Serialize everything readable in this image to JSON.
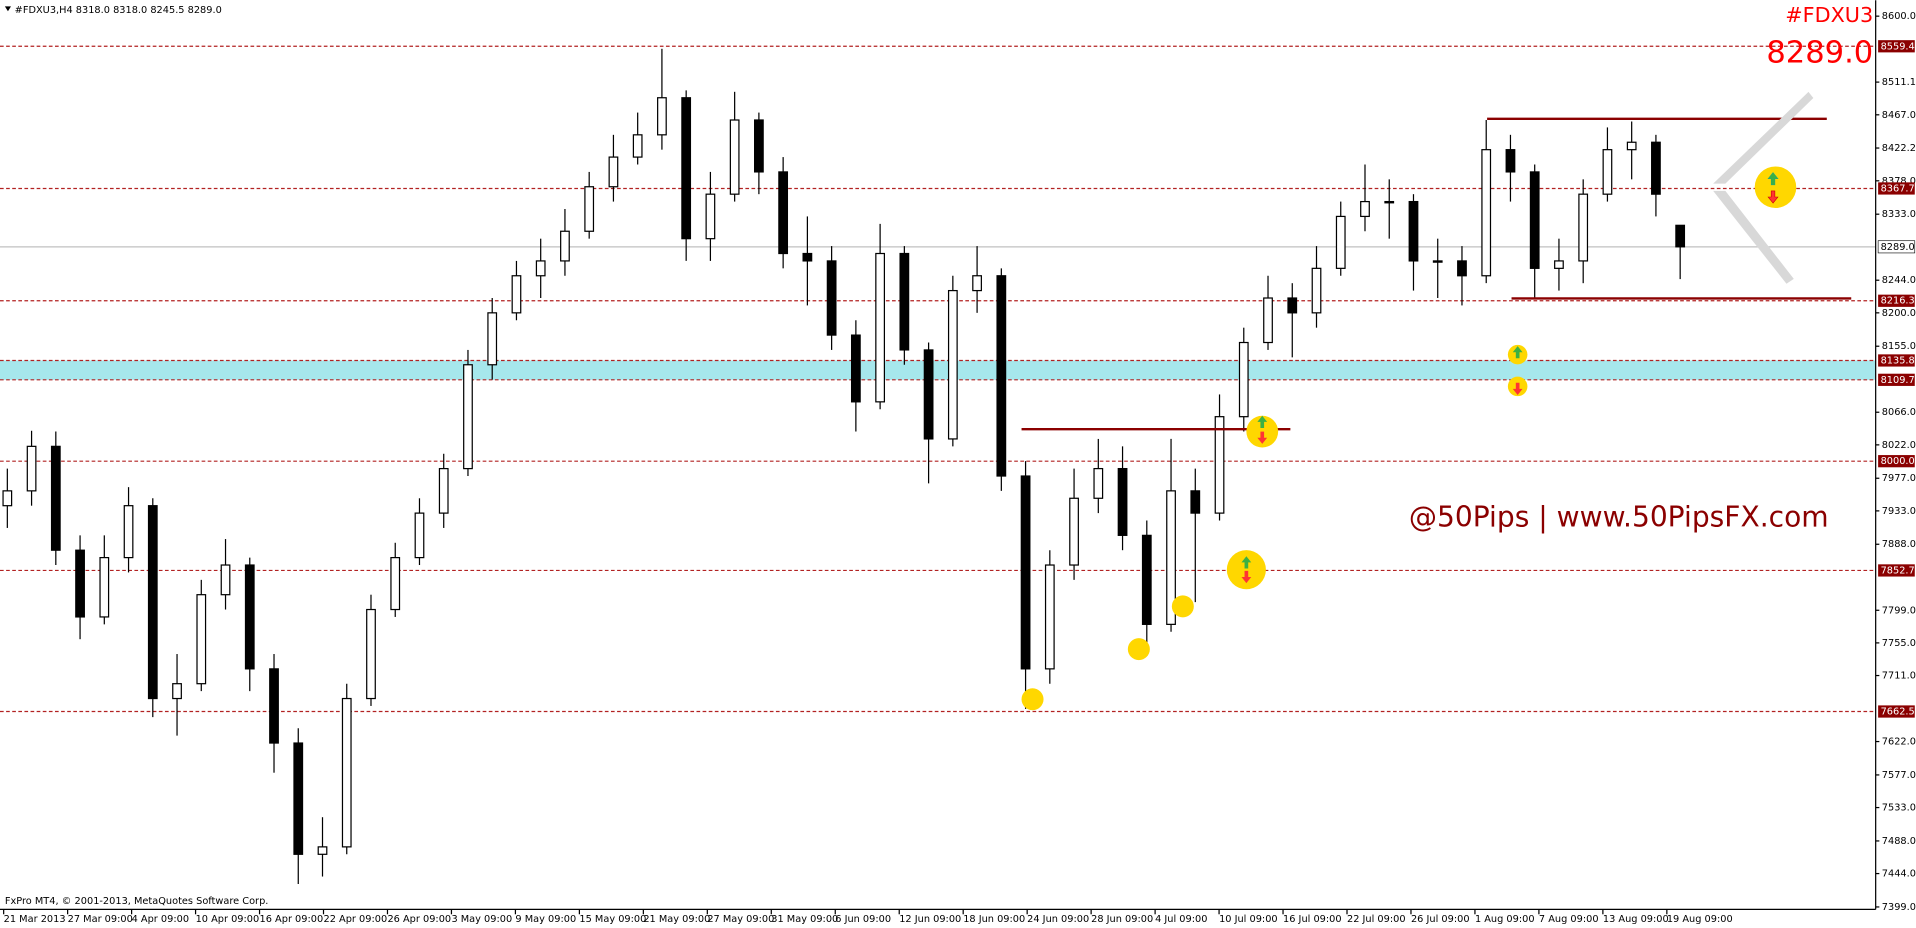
{
  "chart_data": {
    "type": "candlestick",
    "header": "#FDXU3,H4  8318.0 8318.0 8245.5 8289.0",
    "symbol": "#FDXU3",
    "footer": "FxPro MT4, © 2001-2013, MetaQuotes Software Corp.",
    "watermark": "@50Pips | www.50PipsFX.com",
    "x_labels": [
      "21 Mar 2013",
      "27 Mar 09:00",
      "4 Apr 09:00",
      "10 Apr 09:00",
      "16 Apr 09:00",
      "22 Apr 09:00",
      "26 Apr 09:00",
      "3 May 09:00",
      "9 May 09:00",
      "15 May 09:00",
      "21 May 09:00",
      "27 May 09:00",
      "31 May 09:00",
      "6 Jun 09:00",
      "12 Jun 09:00",
      "18 Jun 09:00",
      "24 Jun 09:00",
      "28 Jun 09:00",
      "4 Jul 09:00",
      "10 Jul 09:00",
      "16 Jul 09:00",
      "22 Jul 09:00",
      "26 Jul 09:00",
      "1 Aug 09:00",
      "7 Aug 09:00",
      "13 Aug 09:00",
      "19 Aug 09:00"
    ],
    "open": [
      7940,
      7960,
      8020,
      7880,
      7790,
      7870,
      7940,
      7680,
      7700,
      7820,
      7860,
      7720,
      7620,
      7470,
      7480,
      7680,
      7800,
      7870,
      7930,
      7990,
      8130,
      8200,
      8250,
      8270,
      8310,
      8370,
      8410,
      8440,
      8490,
      8300,
      8360,
      8460,
      8390,
      8280,
      8270,
      8170,
      8080,
      8280,
      8150,
      8030,
      8230,
      8250,
      7980,
      7720,
      7860,
      7950,
      7990,
      7900,
      7780,
      7960,
      7930,
      8060,
      8160,
      8220,
      8200,
      8260,
      8330,
      8350,
      8350,
      8270,
      8270,
      8250,
      8420,
      8390,
      8260,
      8270,
      8360,
      8420,
      8430,
      8318
    ],
    "high": [
      7990,
      8041,
      8040,
      7900,
      7900,
      7965,
      7950,
      7740,
      7840,
      7895,
      7870,
      7740,
      7640,
      7520,
      7700,
      7820,
      7890,
      7950,
      8010,
      8150,
      8220,
      8270,
      8300,
      8340,
      8390,
      8440,
      8470,
      8556,
      8500,
      8390,
      8498,
      8470,
      8410,
      8330,
      8290,
      8190,
      8320,
      8290,
      8160,
      8250,
      8290,
      8260,
      8000,
      7880,
      7990,
      8030,
      8020,
      7920,
      8030,
      7990,
      8090,
      8180,
      8250,
      8240,
      8290,
      8350,
      8400,
      8380,
      8360,
      8300,
      8290,
      8460,
      8440,
      8400,
      8300,
      8380,
      8450,
      8458,
      8440,
      8318
    ],
    "low": [
      7910,
      7940,
      7860,
      7760,
      7780,
      7850,
      7655,
      7630,
      7690,
      7800,
      7690,
      7580,
      7430,
      7440,
      7470,
      7670,
      7790,
      7860,
      7910,
      7980,
      8110,
      8190,
      8220,
      8250,
      8300,
      8350,
      8400,
      8420,
      8270,
      8270,
      8350,
      8360,
      8260,
      8210,
      8150,
      8040,
      8070,
      8130,
      7970,
      8020,
      8200,
      7960,
      7666,
      7700,
      7840,
      7930,
      7880,
      7745,
      7770,
      7810,
      7920,
      8040,
      8150,
      8140,
      8180,
      8250,
      8310,
      8300,
      8230,
      8220,
      8210,
      8240,
      8350,
      8220,
      8230,
      8240,
      8350,
      8380,
      8330,
      8245.5
    ],
    "close": [
      7960,
      8020,
      7880,
      7790,
      7870,
      7940,
      7680,
      7700,
      7820,
      7860,
      7720,
      7620,
      7470,
      7480,
      7680,
      7800,
      7870,
      7930,
      7990,
      8130,
      8200,
      8250,
      8270,
      8310,
      8370,
      8410,
      8440,
      8490,
      8300,
      8360,
      8460,
      8390,
      8280,
      8270,
      8170,
      8080,
      8280,
      8150,
      8030,
      8230,
      8250,
      7980,
      7720,
      7860,
      7950,
      7990,
      7900,
      7780,
      7960,
      7930,
      8060,
      8160,
      8220,
      8200,
      8260,
      8330,
      8350,
      8350,
      8270,
      8270,
      8250,
      8420,
      8390,
      8260,
      8270,
      8360,
      8420,
      8430,
      8360,
      8289
    ],
    "ylim": [
      7399,
      8600
    ],
    "yticks": [
      {
        "value": 8600,
        "label": "8600.0"
      },
      {
        "value": 8511.1,
        "label": "8511.1"
      },
      {
        "value": 8467,
        "label": "8467.0"
      },
      {
        "value": 8422.2,
        "label": "8422.2"
      },
      {
        "value": 8378,
        "label": "8378.0"
      },
      {
        "value": 8333,
        "label": "8333.0"
      },
      {
        "value": 8244,
        "label": "8244.0"
      },
      {
        "value": 8200,
        "label": "8200.0"
      },
      {
        "value": 8155,
        "label": "8155.0"
      },
      {
        "value": 8066,
        "label": "8066.0"
      },
      {
        "value": 8022,
        "label": "8022.0"
      },
      {
        "value": 7977,
        "label": "7977.0"
      },
      {
        "value": 7933,
        "label": "7933.0"
      },
      {
        "value": 7888,
        "label": "7888.0"
      },
      {
        "value": 7799,
        "label": "7799.0"
      },
      {
        "value": 7755,
        "label": "7755.0"
      },
      {
        "value": 7711,
        "label": "7711.0"
      },
      {
        "value": 7622,
        "label": "7622.0"
      },
      {
        "value": 7577,
        "label": "7577.0"
      },
      {
        "value": 7533,
        "label": "7533.0"
      },
      {
        "value": 7488,
        "label": "7488.0"
      },
      {
        "value": 7444,
        "label": "7444.0"
      },
      {
        "value": 7399,
        "label": "7399.0"
      }
    ],
    "levels": [
      {
        "value": 8559.4,
        "label": "8559.4"
      },
      {
        "value": 8367.7,
        "label": "8367.7"
      },
      {
        "value": 8216.3,
        "label": "8216.3"
      },
      {
        "value": 8135.8,
        "label": "8135.8",
        "band": true
      },
      {
        "value": 8109.7,
        "label": "8109.7",
        "band": true
      },
      {
        "value": 8000,
        "label": "8000.0"
      },
      {
        "value": 7852.7,
        "label": "7852.7"
      },
      {
        "value": 7662.5,
        "label": "7662.5"
      }
    ],
    "current_price": {
      "value": 8289,
      "label": "8289.0"
    },
    "level_color": "#b22222",
    "band_color": "#a6e7ec",
    "up_color": "#ffffff",
    "down_color": "#000000"
  }
}
